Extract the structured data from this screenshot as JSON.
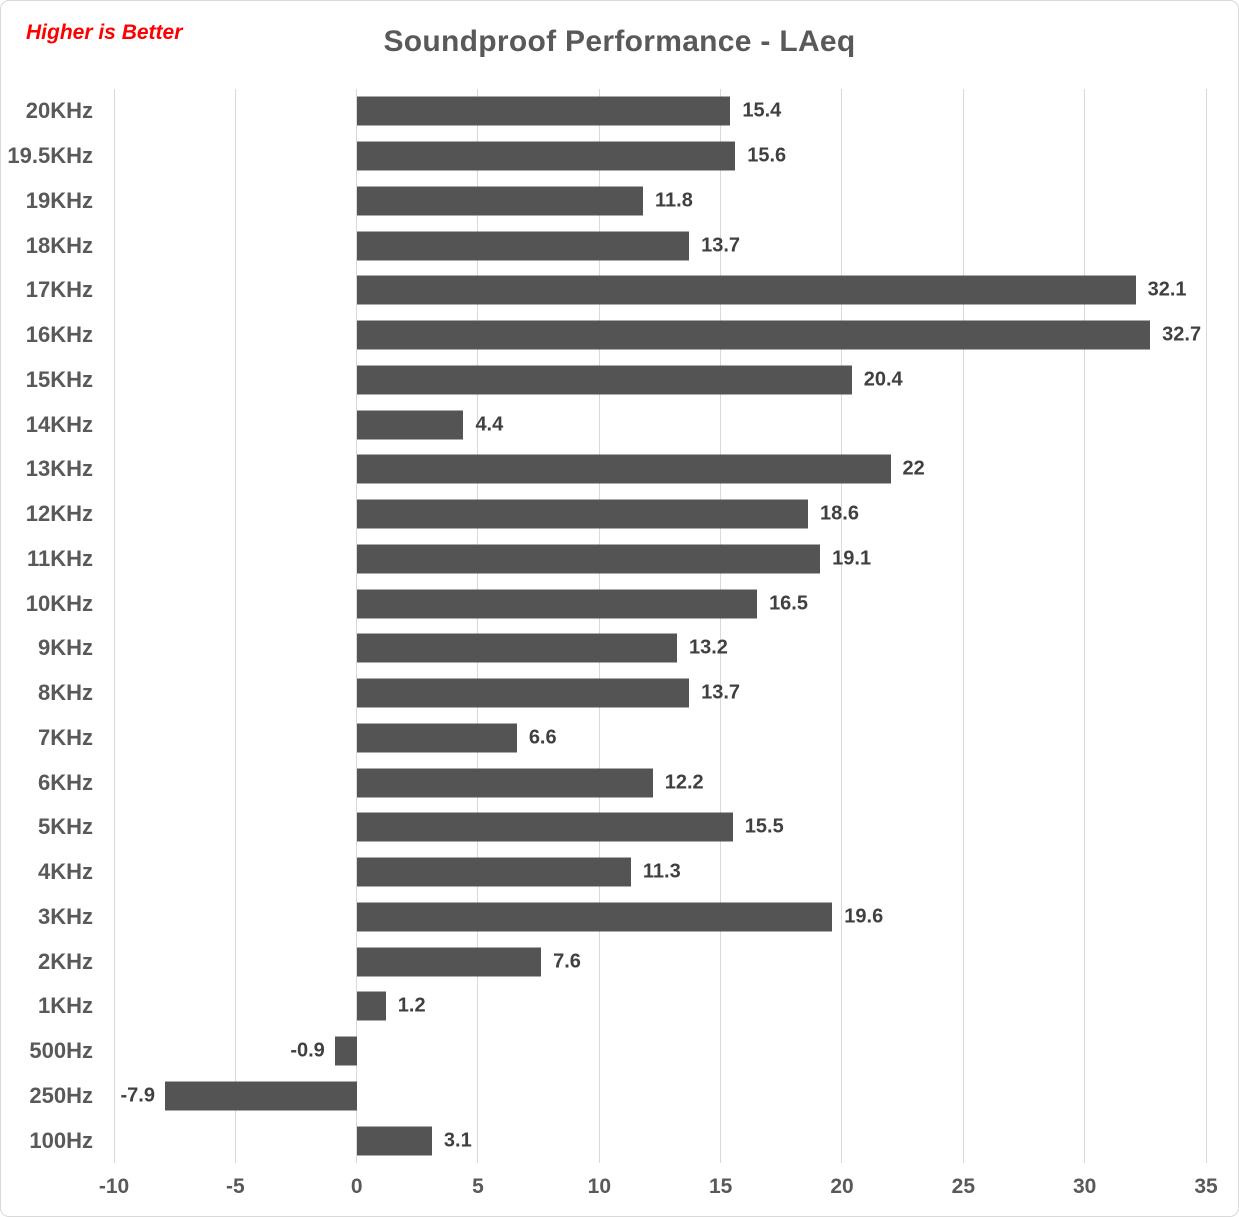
{
  "header": {
    "note": "Higher is Better",
    "title": "Soundproof Performance - LAeq"
  },
  "chart_data": {
    "type": "bar",
    "orientation": "horizontal",
    "title": "Soundproof Performance - LAeq",
    "annotation": "Higher is Better",
    "categories": [
      "20KHz",
      "19.5KHz",
      "19KHz",
      "18KHz",
      "17KHz",
      "16KHz",
      "15KHz",
      "14KHz",
      "13KHz",
      "12KHz",
      "11KHz",
      "10KHz",
      "9KHz",
      "8KHz",
      "7KHz",
      "6KHz",
      "5KHz",
      "4KHz",
      "3KHz",
      "2KHz",
      "1KHz",
      "500Hz",
      "250Hz",
      "100Hz"
    ],
    "values": [
      15.4,
      15.6,
      11.8,
      13.7,
      32.1,
      32.7,
      20.4,
      4.4,
      22,
      18.6,
      19.1,
      16.5,
      13.2,
      13.7,
      6.6,
      12.2,
      15.5,
      11.3,
      19.6,
      7.6,
      1.2,
      -0.9,
      -7.9,
      3.1
    ],
    "xlim": [
      -10,
      35
    ],
    "xticks": [
      -10,
      -5,
      0,
      5,
      10,
      15,
      20,
      25,
      30,
      35
    ],
    "grid": true,
    "legend": false,
    "data_labels": true,
    "colors": {
      "bar": "#545454",
      "gridline": "#D9D9D9",
      "value_label": "#404040",
      "axis_text": "#595959",
      "title": "#595959",
      "note": "#FF0000",
      "background": "#FFFFFF",
      "border": "#D9D9D9"
    }
  }
}
